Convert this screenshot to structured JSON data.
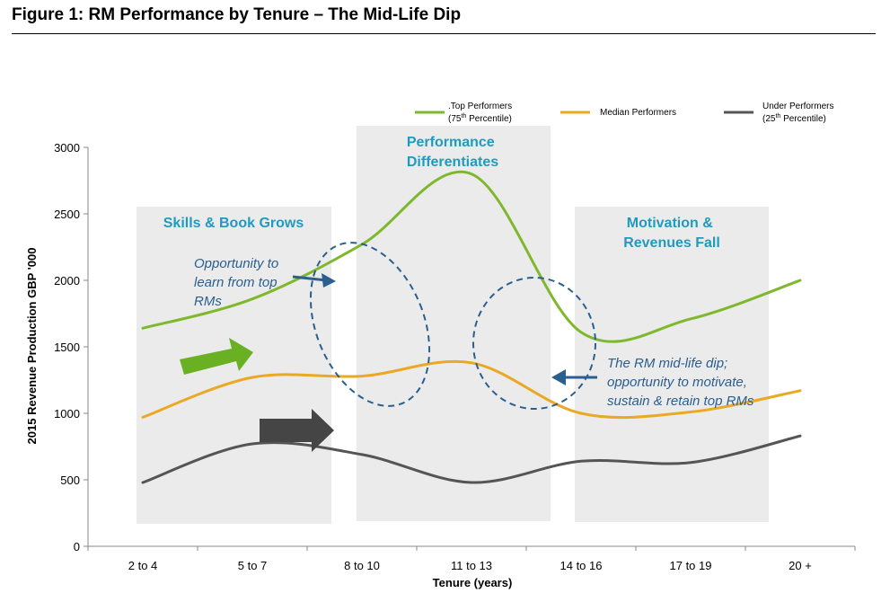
{
  "figure": {
    "title": "Figure 1: RM Performance by Tenure – The Mid-Life Dip"
  },
  "colors": {
    "top": "#7fb82d",
    "median": "#eba824",
    "under": "#555555",
    "band": "#ebebeb",
    "band_title": "#1f9bbf",
    "annotation": "#2a5f8f",
    "green_arrow": "#6ab023",
    "dark_arrow": "#454545"
  },
  "chart_data": {
    "type": "line",
    "categories": [
      "2 to 4",
      "5 to 7",
      "8 to 10",
      "11 to 13",
      "14 to 16",
      "17 to 19",
      "20 +"
    ],
    "series": [
      {
        "key": "top",
        "name": ".Top Performers (75th Percentile)",
        "values": [
          1640,
          1860,
          2270,
          2800,
          1610,
          1710,
          2000
        ]
      },
      {
        "key": "median",
        "name": "Median Performers",
        "values": [
          970,
          1270,
          1280,
          1380,
          1000,
          1010,
          1170
        ]
      },
      {
        "key": "under",
        "name": "Under Performers (25th Percentile)",
        "values": [
          480,
          770,
          690,
          480,
          640,
          630,
          830
        ]
      }
    ],
    "xlabel": "Tenure (years)",
    "ylabel": "2015 Revenue Production GBP '000",
    "ylim": [
      0,
      3000
    ],
    "yticks": [
      0,
      500,
      1000,
      1500,
      2000,
      2500,
      3000
    ],
    "grid": false,
    "legend_position": "top-right",
    "legend": [
      {
        "key": "top",
        "line1": ".Top Performers",
        "line2_pre": "(75",
        "line2_sup": "th",
        "line2_post": " Percentile)"
      },
      {
        "key": "median",
        "line1": "Median  Performers"
      },
      {
        "key": "under",
        "line1": "Under Performers",
        "line2_pre": "(25",
        "line2_sup": "th",
        "line2_post": " Percentile)"
      }
    ],
    "bands": [
      {
        "label_lines": [
          "Skills  & Book Grows"
        ]
      },
      {
        "label_lines": [
          "Performance",
          "Differentiates"
        ]
      },
      {
        "label_lines": [
          "Motivation  &",
          "Revenues  Fall"
        ]
      }
    ],
    "annotations": {
      "left": [
        "Opportunity to",
        "learn from top",
        "RMs"
      ],
      "right": [
        "The RM mid-life dip;",
        "opportunity to motivate,",
        "sustain & retain top RMs"
      ]
    }
  }
}
